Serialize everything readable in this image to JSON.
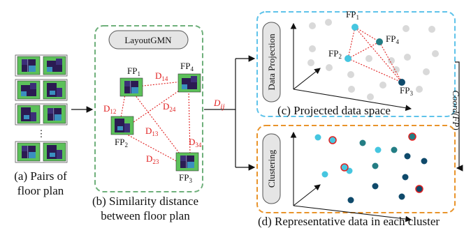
{
  "captions": {
    "a_line1": "(a) Pairs of",
    "a_line2": "floor plan",
    "b_line1": "(b) Similarity distance",
    "b_line2": "between floor plan",
    "c": "(c) Projected data space",
    "d": "(d) Representative data in each cluster"
  },
  "model_label": "LayoutGMN",
  "process_labels": {
    "projection": "Data Projection",
    "clustering": "Clustering"
  },
  "dij": {
    "base": "D",
    "sub": "ij"
  },
  "coord": "Coord(FP)",
  "ellipsis": "⋮",
  "fp_nodes": [
    {
      "id": "fp1",
      "base": "FP",
      "sub": "1"
    },
    {
      "id": "fp2",
      "base": "FP",
      "sub": "2"
    },
    {
      "id": "fp3",
      "base": "FP",
      "sub": "3"
    },
    {
      "id": "fp4",
      "base": "FP",
      "sub": "4"
    }
  ],
  "distances": [
    {
      "id": "d12",
      "base": "D",
      "sub": "12"
    },
    {
      "id": "d13",
      "base": "D",
      "sub": "13"
    },
    {
      "id": "d14",
      "base": "D",
      "sub": "14"
    },
    {
      "id": "d23",
      "base": "D",
      "sub": "23"
    },
    {
      "id": "d24",
      "base": "D",
      "sub": "24"
    },
    {
      "id": "d34",
      "base": "D",
      "sub": "34"
    }
  ],
  "projection_labels": [
    {
      "id": "p1",
      "base": "FP",
      "sub": "1"
    },
    {
      "id": "p2",
      "base": "FP",
      "sub": "2"
    },
    {
      "id": "p3",
      "base": "FP",
      "sub": "3"
    },
    {
      "id": "p4",
      "base": "FP",
      "sub": "4"
    }
  ],
  "colors": {
    "green_border": "#6fb07b",
    "orange_border": "#e9942b",
    "blue_border": "#5fc3ea",
    "floorplan_green": "#5cc15a",
    "floorplan_dark": "#2b1b52",
    "red": "#e02020",
    "cyan_point": "#46c6e0",
    "navy_point": "#0f4a6b",
    "teal_point": "#237d84",
    "gray_point": "#d9d9d9"
  }
}
